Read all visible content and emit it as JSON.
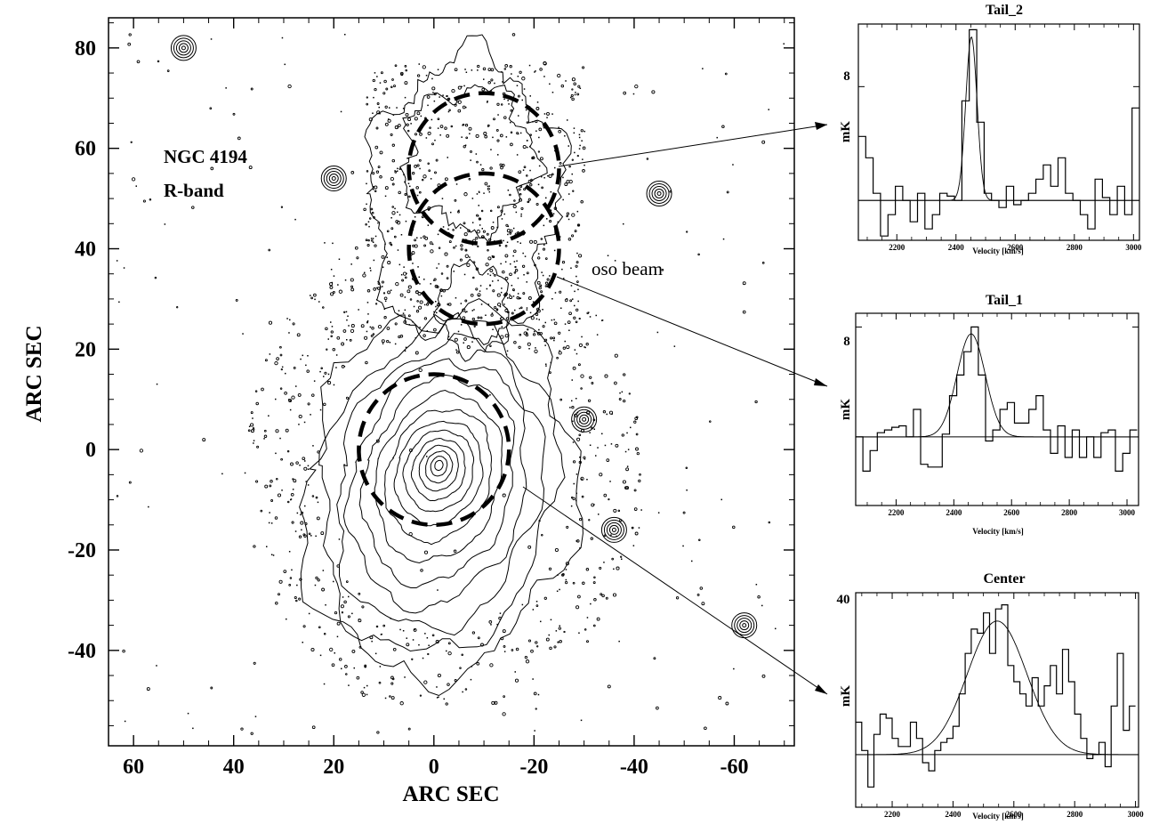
{
  "figure": {
    "colors": {
      "ink": "#000000",
      "background": "#ffffff"
    }
  },
  "chart_data": [
    {
      "type": "contour",
      "title": "NGC 4194",
      "subtitle": "R-band",
      "xlabel": "ARC SEC",
      "ylabel": "ARC SEC",
      "xlim": [
        65,
        -72
      ],
      "ylim": [
        -59,
        86
      ],
      "x_ticks": [
        60,
        40,
        20,
        0,
        -20,
        -40,
        -60
      ],
      "x_tick_labels": [
        "60",
        "40",
        "20",
        "0",
        "-20",
        "-40",
        "-60"
      ],
      "y_ticks": [
        80,
        60,
        40,
        20,
        0,
        -20,
        -40
      ],
      "y_tick_labels": [
        "80",
        "60",
        "40",
        "20",
        "0",
        "-20",
        "-40"
      ],
      "annotation": "oso beam",
      "beams": [
        {
          "name": "Center",
          "center": [
            0,
            0
          ],
          "radius": 15
        },
        {
          "name": "Tail_1",
          "center": [
            -10,
            40
          ],
          "radius": 15
        },
        {
          "name": "Tail_2",
          "center": [
            -10,
            56
          ],
          "radius": 15
        }
      ],
      "stars": [
        {
          "x": 20,
          "y": 54
        },
        {
          "x": -45,
          "y": 51
        },
        {
          "x": -30,
          "y": 6
        },
        {
          "x": -36,
          "y": -16
        },
        {
          "x": -62,
          "y": -35
        },
        {
          "x": 50,
          "y": 80
        }
      ]
    },
    {
      "type": "line",
      "title": "Tail_2",
      "xlabel": "Velocity  [km/s]",
      "ylabel": "mK",
      "xlim": [
        2070,
        3020
      ],
      "ylim": [
        -2.8,
        12.4
      ],
      "x_tick_labels": [
        "2200",
        "2400",
        "2600",
        "2800",
        "3000"
      ],
      "y_tick_labels": [
        "8"
      ],
      "series": [
        {
          "style": "histogram",
          "x": [
            2070,
            2095,
            2120,
            2145,
            2170,
            2195,
            2220,
            2245,
            2270,
            2295,
            2320,
            2345,
            2370,
            2395,
            2420,
            2445,
            2470,
            2495,
            2520,
            2545,
            2570,
            2595,
            2620,
            2645,
            2670,
            2695,
            2720,
            2745,
            2770,
            2795,
            2820,
            2845,
            2870,
            2895,
            2920,
            2945,
            2970,
            2995
          ],
          "y": [
            4.5,
            3.0,
            0.5,
            -2.5,
            -1.0,
            1.0,
            0.0,
            -1.5,
            0.5,
            -2.0,
            -1.0,
            0.5,
            0.3,
            0.0,
            7.0,
            12.0,
            5.5,
            0.5,
            0.0,
            -0.5,
            1.0,
            -0.3,
            0.0,
            0.5,
            1.5,
            2.5,
            1.0,
            3.0,
            0.5,
            0.0,
            -1.0,
            -2.0,
            1.5,
            0.2,
            -1.0,
            1.0,
            -1.0,
            6.5
          ]
        },
        {
          "style": "gaussian",
          "amplitude": 11.5,
          "center": 2452,
          "fwhm": 45
        }
      ]
    },
    {
      "type": "line",
      "title": "Tail_1",
      "xlabel": "Velocity  [km/s]",
      "ylabel": "mK",
      "xlim": [
        2060,
        3040
      ],
      "ylim": [
        -5,
        9
      ],
      "x_tick_labels": [
        "2200",
        "2400",
        "2600",
        "2800",
        "3000"
      ],
      "y_tick_labels": [
        "8"
      ],
      "series": [
        {
          "style": "histogram",
          "x": [
            2060,
            2085,
            2110,
            2135,
            2160,
            2185,
            2210,
            2235,
            2260,
            2285,
            2310,
            2335,
            2360,
            2385,
            2410,
            2435,
            2460,
            2485,
            2510,
            2535,
            2560,
            2585,
            2610,
            2635,
            2660,
            2685,
            2710,
            2735,
            2760,
            2785,
            2810,
            2835,
            2860,
            2885,
            2910,
            2935,
            2960,
            2985,
            3010
          ],
          "y": [
            0,
            -2.5,
            -1.0,
            0.3,
            0.5,
            0.7,
            0.8,
            0.0,
            2.0,
            -2.0,
            -2.2,
            -2.2,
            0.2,
            3.0,
            4.5,
            6.2,
            8.0,
            4.5,
            -0.3,
            0.5,
            2.0,
            2.5,
            1.0,
            1.0,
            2.0,
            3.0,
            0.5,
            -1.2,
            0.8,
            -1.5,
            0.5,
            -1.5,
            0.0,
            -1.5,
            0.3,
            0.5,
            -2.5,
            -1.2,
            0.5
          ]
        },
        {
          "style": "gaussian",
          "amplitude": 7.5,
          "center": 2460,
          "fwhm": 115
        }
      ]
    },
    {
      "type": "line",
      "title": "Center",
      "xlabel": "Velocity  [km/s]",
      "ylabel": "mK",
      "xlim": [
        2080,
        3010
      ],
      "ylim": [
        -13,
        40
      ],
      "x_tick_labels": [
        "2200",
        "2400",
        "2600",
        "2800",
        "3000"
      ],
      "y_tick_labels": [
        "40"
      ],
      "series": [
        {
          "style": "histogram",
          "x": [
            2080,
            2100,
            2120,
            2140,
            2160,
            2180,
            2200,
            2220,
            2240,
            2260,
            2280,
            2300,
            2320,
            2340,
            2360,
            2380,
            2400,
            2420,
            2440,
            2460,
            2480,
            2500,
            2520,
            2540,
            2560,
            2580,
            2600,
            2620,
            2640,
            2660,
            2680,
            2700,
            2720,
            2740,
            2760,
            2780,
            2800,
            2820,
            2840,
            2860,
            2880,
            2900,
            2920,
            2940,
            2960,
            2980
          ],
          "y": [
            8,
            1,
            -8,
            5,
            10,
            9,
            4,
            2,
            2,
            8,
            4,
            -2,
            -4,
            1,
            3,
            4,
            7,
            15,
            25,
            31,
            30,
            35,
            25,
            36,
            37,
            22,
            18,
            15,
            12,
            19,
            12,
            17,
            22,
            15,
            26,
            18,
            10,
            4,
            -1,
            0,
            3,
            -3,
            12,
            25,
            6,
            12
          ]
        },
        {
          "style": "gaussian",
          "amplitude": 33,
          "center": 2545,
          "fwhm": 230
        }
      ]
    }
  ]
}
